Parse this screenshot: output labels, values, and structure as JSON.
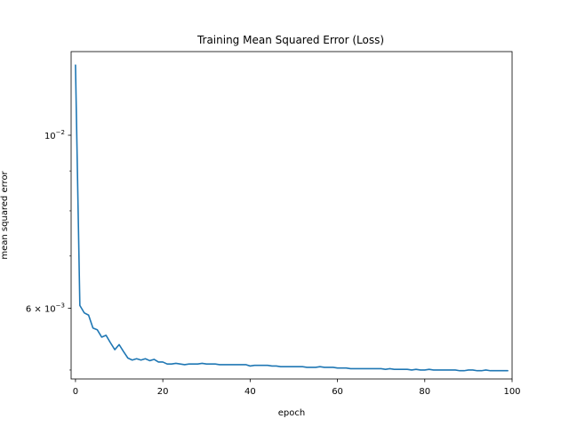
{
  "chart_data": {
    "type": "line",
    "title": "Training Mean Squared Error (Loss)",
    "xlabel": "epoch",
    "ylabel": "mean squared error",
    "xscale": "linear",
    "yscale": "log",
    "xlim": [
      -1,
      100
    ],
    "ylim": [
      0.00487,
      0.0128
    ],
    "grid": false,
    "line_color": "#1f77b4",
    "x_ticks": [
      {
        "value": 0,
        "label": "0"
      },
      {
        "value": 20,
        "label": "20"
      },
      {
        "value": 40,
        "label": "40"
      },
      {
        "value": 60,
        "label": "60"
      },
      {
        "value": 80,
        "label": "80"
      },
      {
        "value": 100,
        "label": "100"
      }
    ],
    "y_major_ticks": [
      {
        "value": 0.01,
        "label_base": "10",
        "label_exp": "−2"
      },
      {
        "value": 0.006,
        "label_base": "6 × 10",
        "label_exp": "−3"
      }
    ],
    "y_minor_ticks": [
      0.005,
      0.007,
      0.008,
      0.009
    ],
    "x": [
      0,
      1,
      2,
      3,
      4,
      5,
      6,
      7,
      8,
      9,
      10,
      11,
      12,
      13,
      14,
      15,
      16,
      17,
      18,
      19,
      20,
      21,
      22,
      23,
      24,
      25,
      26,
      27,
      28,
      29,
      30,
      31,
      32,
      33,
      34,
      35,
      36,
      37,
      38,
      39,
      40,
      41,
      42,
      43,
      44,
      45,
      46,
      47,
      48,
      49,
      50,
      51,
      52,
      53,
      54,
      55,
      56,
      57,
      58,
      59,
      60,
      61,
      62,
      63,
      64,
      65,
      66,
      67,
      68,
      69,
      70,
      71,
      72,
      73,
      74,
      75,
      76,
      77,
      78,
      79,
      80,
      81,
      82,
      83,
      84,
      85,
      86,
      87,
      88,
      89,
      90,
      91,
      92,
      93,
      94,
      95,
      96,
      97,
      98,
      99
    ],
    "y": [
      0.0123,
      0.00605,
      0.00592,
      0.00588,
      0.00566,
      0.00563,
      0.00551,
      0.00554,
      0.00542,
      0.00531,
      0.00539,
      0.00528,
      0.00518,
      0.00515,
      0.00517,
      0.00515,
      0.00517,
      0.00514,
      0.00516,
      0.00512,
      0.00512,
      0.00509,
      0.00509,
      0.0051,
      0.00509,
      0.00508,
      0.00509,
      0.00509,
      0.00509,
      0.0051,
      0.00509,
      0.00509,
      0.00509,
      0.00508,
      0.00508,
      0.00508,
      0.00508,
      0.00508,
      0.00508,
      0.00508,
      0.00506,
      0.00507,
      0.00507,
      0.00507,
      0.00507,
      0.00506,
      0.00506,
      0.00505,
      0.00505,
      0.00505,
      0.00505,
      0.00505,
      0.00505,
      0.00504,
      0.00504,
      0.00504,
      0.00505,
      0.00504,
      0.00504,
      0.00504,
      0.00503,
      0.00503,
      0.00503,
      0.00502,
      0.00502,
      0.00502,
      0.00502,
      0.00502,
      0.00502,
      0.00502,
      0.00502,
      0.00501,
      0.00502,
      0.00501,
      0.00501,
      0.00501,
      0.00501,
      0.005,
      0.00501,
      0.005,
      0.005,
      0.00501,
      0.005,
      0.005,
      0.005,
      0.005,
      0.005,
      0.005,
      0.00499,
      0.00499,
      0.005,
      0.005,
      0.00499,
      0.00499,
      0.005,
      0.00499,
      0.00499,
      0.00499,
      0.00499,
      0.00499
    ]
  }
}
